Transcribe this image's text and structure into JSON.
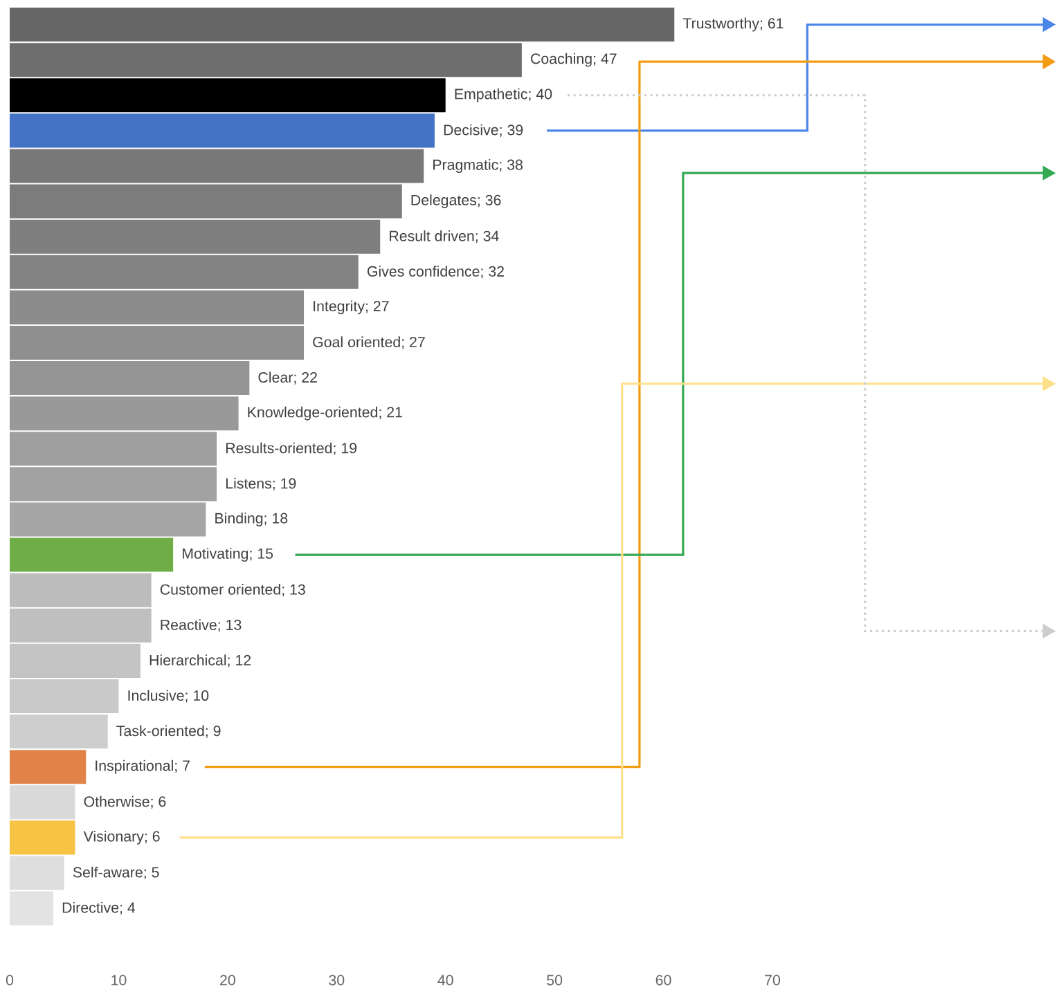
{
  "chart_data": {
    "type": "bar",
    "orientation": "horizontal",
    "categories": [
      null,
      null,
      null,
      null,
      null,
      null,
      null,
      null,
      null,
      null,
      null,
      null,
      null,
      null,
      null,
      null,
      null,
      null,
      null,
      null,
      null,
      null,
      null,
      null,
      null,
      null
    ],
    "values": [
      61,
      47,
      40,
      39,
      38,
      36,
      34,
      32,
      27,
      27,
      22,
      21,
      19,
      19,
      18,
      15,
      13,
      13,
      12,
      10,
      9,
      7,
      6,
      6,
      5,
      4
    ],
    "colors": [
      "#666666",
      "#6e6e6e",
      "#000000",
      "#4472c4",
      "#787878",
      "#7c7c7c",
      "#7f7f7f",
      "#838383",
      "#8c8c8c",
      "#8f8f8f",
      "#959595",
      "#999999",
      "#9f9f9f",
      "#a2a2a2",
      "#a6a6a6",
      "#70ad47",
      "#bcbcbc",
      "#bfbfbf",
      "#c4c4c4",
      "#c9c9c9",
      "#cecece",
      "#e2844a",
      "#dadada",
      "#f6c343",
      "#dedede",
      "#e3e3e3"
    ],
    "value_labels": [
      "Trustworthy; 61",
      "Coaching; 47",
      "Empathetic; 40",
      "Decisive; 39",
      "Pragmatic; 38",
      "Delegates; 36",
      "Result driven; 34",
      "Gives confidence; 32",
      "Integrity; 27",
      "Goal oriented; 27",
      "Clear; 22",
      "Knowledge-oriented; 21",
      "Results-oriented; 19",
      "Listens; 19",
      "Binding; 18",
      "Motivating; 15",
      "Customer oriented; 13",
      "Reactive; 13",
      "Hierarchical; 12",
      "Inclusive; 10",
      "Task-oriented; 9",
      "Inspirational; 7",
      "Otherwise; 6",
      "Visionary; 6",
      "Self-aware; 5",
      "Directive; 4"
    ],
    "xlim": [
      0,
      70
    ],
    "xticks": [
      0,
      10,
      20,
      30,
      40,
      50,
      60,
      70
    ],
    "tick_labels": "x"
  }
}
